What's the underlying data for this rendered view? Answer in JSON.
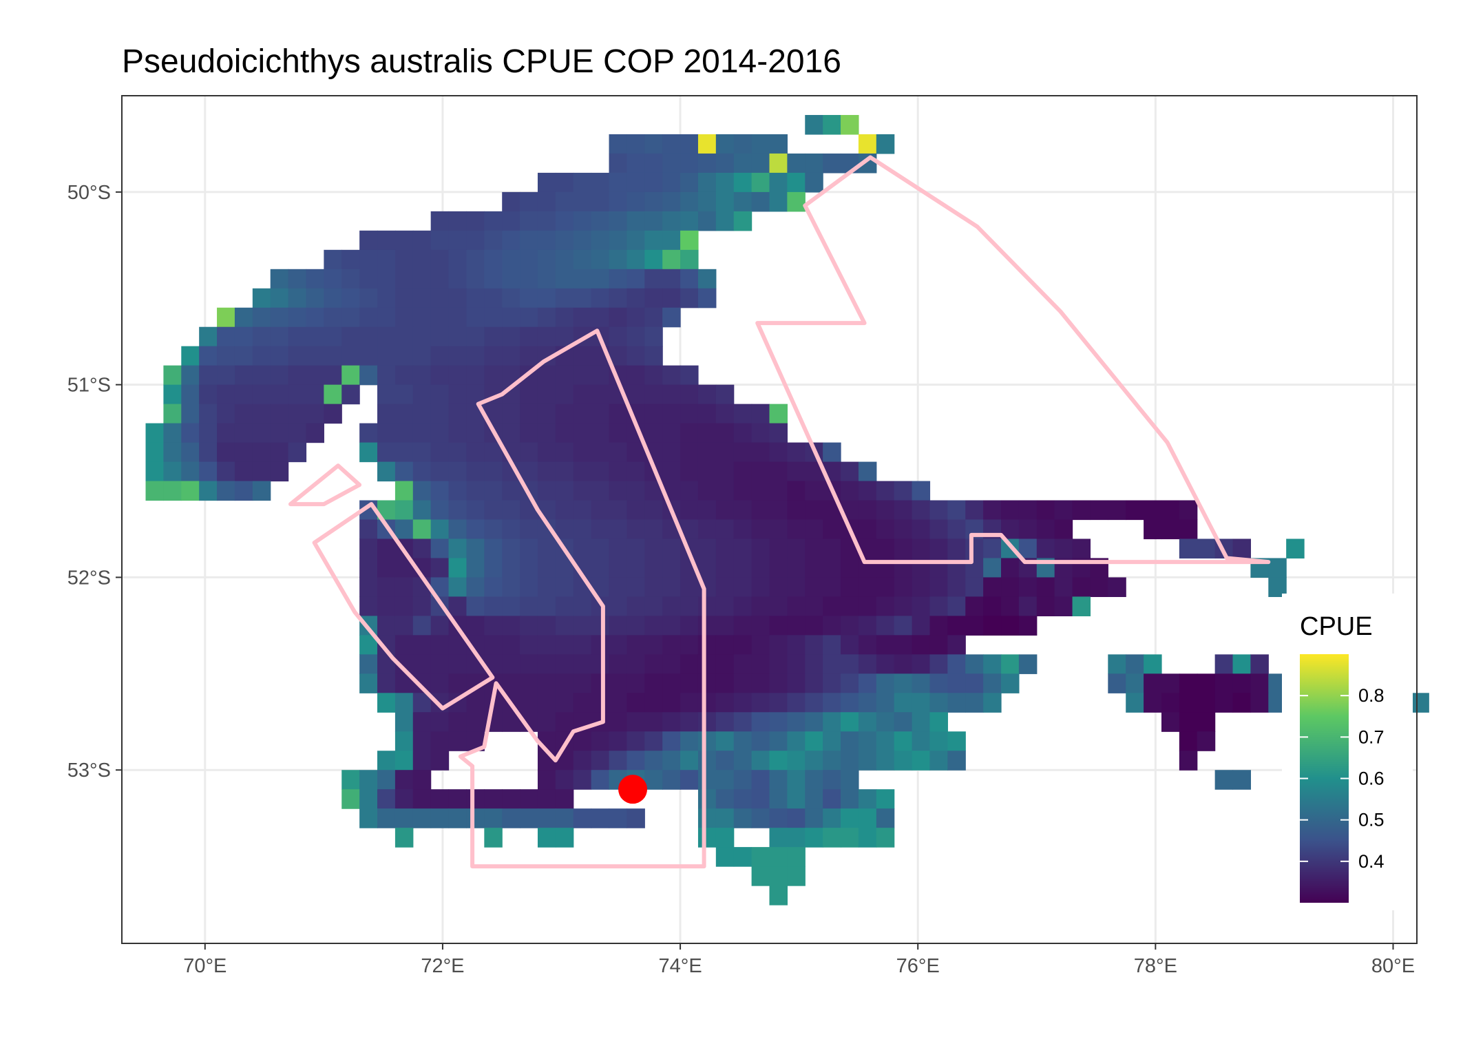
{
  "chart_data": {
    "type": "heatmap",
    "title": "Pseudoicichthys australis  CPUE COP 2014-2016",
    "xlabel": "",
    "ylabel": "",
    "x_ticks": [
      "70°E",
      "72°E",
      "74°E",
      "76°E",
      "78°E",
      "80°E"
    ],
    "x_tick_values": [
      70,
      72,
      74,
      76,
      78,
      80
    ],
    "y_ticks": [
      "50°S",
      "51°S",
      "52°S",
      "53°S"
    ],
    "y_tick_values": [
      -50,
      -51,
      -52,
      -53
    ],
    "xlim": [
      69.3,
      80.2
    ],
    "ylim": [
      -53.9,
      -49.5
    ],
    "grid": true,
    "legend": {
      "title": "CPUE",
      "position": "right",
      "breaks": [
        0.4,
        0.5,
        0.6,
        0.7,
        0.8
      ],
      "labels": [
        "0.4",
        "0.5",
        "0.6",
        "0.7",
        "0.8"
      ],
      "range": [
        0.3,
        0.9
      ],
      "colors": [
        "#440154",
        "#3b528b",
        "#21908c",
        "#5dc863",
        "#fde725"
      ]
    },
    "grid_resolution": [
      0.15,
      0.1
    ],
    "cells": {
      "lon_start": 69.8,
      "lat_start": -49.6,
      "lat_step": -0.1,
      "lon_step": 0.15,
      "rows": [
        [
          55,
          "0.55,0.62,0.78"
        ],
        [
          44,
          "0.46,0.46,0.47,0.46,0.46,0.88,0.5,0.49,0.5,0.5,0,0,0,0,0.88,0.55"
        ],
        [
          44,
          "0.44,0.45,0.45,0.46,0.46,0.47,0.48,0.5,0.5,0.84,0.5,0.5,0.48,0.48,0.5"
        ],
        [
          40,
          "0.43,0.43,0.44,0.44,0.45,0.45,0.45,0.46,0.48,0.52,0.55,0.6,0.65,0.55,0.6,0.5"
        ],
        [
          38,
          "0.42,0.43,0.43,0.44,0.44,0.44,0.45,0.46,0.47,0.48,0.5,0.52,0.55,0.52,0.5,0.55,0.72"
        ],
        [
          34,
          "0.42,0.42,0.42,0.43,0.43,0.44,0.44,0.45,0.46,0.47,0.48,0.5,0.5,0.52,0.53,0.5,0.55,0.62"
        ],
        [
          30,
          "0.42,0.42,0.42,0.42,0.43,0.43,0.43,0.44,0.45,0.46,0.46,0.47,0.48,0.49,0.5,0.52,0.55,0.55,0.75"
        ],
        [
          28,
          "0.44,0.43,0.43,0.43,0.42,0.42,0.42,0.43,0.44,0.45,0.46,0.46,0.47,0.48,0.49,0.5,0.52,0.55,0.6,0.7,0.65"
        ],
        [
          25,
          "0.5,0.48,0.46,0.45,0.44,0.43,0.43,0.42,0.42,0.42,0.43,0.44,0.45,0.46,0.46,0.47,0.48,0.48,0.48,0.46,0.45,0.42,0.42,0.45,0.52"
        ],
        [
          24,
          "0.55,0.53,0.5,0.48,0.46,0.45,0.44,0.43,0.42,0.42,0.42,0.42,0.43,0.43,0.44,0.45,0.45,0.44,0.44,0.43,0.42,0.41,0.4,0.4,0.42,0.45"
        ],
        [
          22,
          "0.78,0.5,0.48,0.47,0.46,0.45,0.44,0.44,0.43,0.43,0.42,0.42,0.42,0.42,0.43,0.43,0.43,0.43,0.42,0.41,0.4,0.4,0.39,0.4,0.41,0.45"
        ],
        [
          21,
          "0.55,0.45,0.45,0.44,0.44,0.43,0.43,0.43,0.42,0.42,0.42,0.42,0.42,0.42,0.42,0.42,0.41,0.41,0.4,0.4,0.4,0.39,0.39,0.4,0.41,0.42"
        ],
        [
          20,
          "0.6,0.45,0.44,0.44,0.43,0.43,0.42,0.42,0.42,0.42,0.42,0.42,0.42,0.42,0.41,0.41,0.41,0.4,0.4,0.39,0.39,0.38,0.38,0.38,0.39,0.4,0.41"
        ],
        [
          19,
          "0.68,0.5,0.42,0.42,0.41,0.41,0.41,0.4,0.4,0.4,0.72,0.48,0.42,0.41,0.41,0.4,0.4,0.4,0.39,0.39,0.38,0.38,0.38,0.38,0.38,0.37,0.37,0.38,0.39,0.4"
        ],
        [
          19,
          "0.6,0.48,0.41,0.4,0.4,0.4,0.4,0.4,0.4,0.72,0.4,0,0.42,0.42,0.41,0.41,0.4,0.4,0.39,0.39,0.38,0.38,0.38,0.37,0.37,0.37,0.37,0.37,0.37,0.37,0.38,0.39"
        ],
        [
          19,
          "0.68,0.48,0.42,0.4,0.39,0.39,0.39,0.39,0.39,0.38,0,0,0.41,0.41,0.41,0.41,0.4,0.4,0.39,0.39,0.38,0.38,0.37,0.37,0.37,0.36,0.36,0.36,0.36,0.36,0.36,0.37,0.38,0.38,0.72"
        ],
        [
          18,
          "0.6,0.52,0.45,0.42,0.39,0.39,0.39,0.39,0.39,0.38,0,0,0.42,0.41,0.41,0.41,0.41,0.4,0.4,0.39,0.39,0.38,0.38,0.37,0.37,0.37,0.36,0.36,0.36,0.36,0.35,0.35,0.35,0.36,0.37,0.38"
        ],
        [
          18,
          "0.6,0.52,0.48,0.42,0.38,0.38,0.38,0.38,0.4,0,0,0,0.58,0.42,0.42,0.42,0.41,0.41,0.4,0.4,0.39,0.39,0.38,0.38,0.37,0.37,0.37,0.36,0.36,0.36,0.35,0.35,0.35,0.35,0.35,0.36,0.37,0.38,0.46"
        ],
        [
          18,
          "0.6,0.55,0.5,0.45,0.4,0.38,0.38,0.38,0,0,0,0,0,0.55,0.46,0.43,0.42,0.42,0.41,0.41,0.4,0.4,0.39,0.39,0.38,0.38,0.37,0.37,0.36,0.36,0.35,0.35,0.35,0.34,0.34,0.34,0.35,0.35,0.36,0.38,0.48"
        ],
        [
          18,
          "0.7,0.7,0.72,0.55,0.48,0.46,0.5,0,0,0,0,0,0,0,0.72,0.48,0.45,0.43,0.42,0.42,0.41,0.41,0.4,0.4,0.39,0.39,0.38,0.38,0.37,0.36,0.36,0.35,0.35,0.34,0.34,0.34,0.33,0.34,0.34,0.35,0.36,0.38,0.4,0.45"
        ],
        [
          23,
          "0,0,0,0,0,0,0,0.45,0.68,0.66,0.52,0.46,0.44,0.43,0.42,0.42,0.41,0.41,0.4,0.4,0.39,0.39,0.38,0.38,0.37,0.36,0.36,0.35,0.35,0.34,0.34,0.33,0.33,0.33,0.34,0.34,0.35,0.36,0.38,0.4,0.42,0.38,0.34,0.33,0.33,0.32,0.33,0.32,0.32,0.32,0.31,0.31,0.31,0.32"
        ],
        [
          23,
          "0,0,0,0,0,0,0,0.4,0.45,0.5,0.7,0.55,0.48,0.45,0.44,0.43,0.42,0.42,0.41,0.41,0.4,0.4,0.39,0.39,0.38,0.38,0.37,0.37,0.36,0.35,0.35,0.34,0.34,0.33,0.33,0.33,0.34,0.35,0.36,0.38,0.4,0.42,0.38,0.35,0.34,0.33,0.32,0,0,0,0,0.31,0.31,0.31"
        ],
        [
          24,
          "0,0,0,0,0,0,0.38,0.36,0.36,0.38,0.46,0.55,0.5,0.46,0.44,0.43,0.42,0.42,0.41,0.41,0.4,0.4,0.39,0.39,0.38,0.38,0.37,0.37,0.36,0.35,0.35,0.34,0.34,0.33,0.33,0.33,0.34,0.35,0.36,0.38,0.4,0.42,0.55,0.45,0.36,0.35,0.34,0,0,0,0,0,0.42,0.42,0.4,0.38,0,0,0.6"
        ],
        [
          24,
          "0,0,0,0,0,0,0.38,0.36,0.36,0.36,0.38,0.6,0.5,0.46,0.44,0.43,0.42,0.42,0.41,0.41,0.4,0.4,0.39,0.39,0.38,0.38,0.37,0.37,0.36,0.35,0.35,0.34,0.34,0.33,0.33,0.33,0.34,0.35,0.36,0.38,0.4,0.5,0.33,0.35,0.52,0.34,0.33,0.32,0,0,0,0,0,0,0,0,0.55,0.55"
        ],
        [
          25,
          "0,0,0,0,0,0.38,0.37,0.37,0.38,0.45,0.55,0.48,0.45,0.44,0.43,0.42,0.42,0.41,0.41,0.4,0.4,0.39,0.39,0.38,0.38,0.37,0.37,0.36,0.35,0.35,0.34,0.34,0.33,0.33,0.33,0.34,0.35,0.36,0.38,0.4,0.32,0.32,0.33,0.32,0.34,0.32,0.32,0.33,0,0,0,0,0,0,0,0,0.55"
        ],
        [
          26,
          "0,0,0,0,0.38,0.37,0.37,0.38,0.42,0.38,0.44,0.43,0.43,0.42,0.42,0.41,0.41,0.4,0.4,0.39,0.39,0.38,0.38,0.37,0.37,0.36,0.35,0.35,0.34,0.34,0.33,0.33,0.33,0.34,0.35,0.36,0.38,0.4,0.32,0.31,0.32,0.35,0.32,0.33,0.62,0,0,0,0,0,0,0,0,0,0,0,0"
        ],
        [
          27,
          "0,0,0,0.55,0.38,0.38,0.42,0.38,0.36,0.36,0.37,0.37,0.38,0.38,0.39,0.39,0.39,0.38,0.38,0.37,0.37,0.36,0.35,0.35,0.34,0.34,0.33,0.33,0.33,0.34,0.35,0.36,0.38,0.4,0.36,0.32,0.31,0.31,0.3,0.3,0.31,0,0,0,0,0,0,0,0,0,0,0,0,0,0,0,0.48"
        ],
        [
          27,
          "0,0,0,0.6,0.38,0.36,0.36,0.36,0.36,0.36,0.36,0.36,0.37,0.37,0.37,0.37,0.36,0.36,0.35,0.35,0.34,0.34,0.33,0.33,0.33,0.34,0.35,0.36,0.38,0.4,0.36,0.34,0.33,0.33,0.32,0.32,0.34,0,0,0,0,0,0,0,0,0,0,0,0,0,0,0,0,0,0,0,0.45"
        ],
        [
          28,
          "0,0,0.5,0.38,0.36,0.36,0.36,0.36,0.36,0.36,0.36,0.36,0.36,0.36,0.36,0.36,0.35,0.35,0.34,0.34,0.33,0.33,0.33,0.34,0.34,0.35,0.36,0.38,0.4,0.4,0.38,0.36,0.35,0.36,0.4,0.45,0.5,0.55,0.62,0.5,0,0,0,0,0.55,0.5,0.6,0,0,0,0.4,0.6,0.38,0,0.5"
        ],
        [
          30,
          "0.55,0.38,0.36,0.36,0.36,0.35,0.35,0.35,0.35,0.35,0.35,0.35,0.35,0.34,0.34,0.34,0.33,0.33,0.33,0.33,0.33,0.34,0.34,0.35,0.36,0.38,0.4,0.42,0.45,0.5,0.52,0.5,0.46,0.45,0.45,0.5,0.55,0,0,0,0,0,0.48,0.52,0.32,0.32,0.3,0.3,0.31,0.31,0.32,0.5,0.55,0.52,0.6"
        ],
        [
          31,
          "0.6,0.55,0.4,0.37,0.36,0.35,0.35,0.35,0.35,0.35,0.35,0.34,0.34,0.34,0.33,0.33,0.33,0.34,0.34,0.35,0.36,0.37,0.38,0.4,0.42,0.44,0.46,0.48,0.5,0.55,0.55,0.52,0.5,0.5,0.55,0,0,0,0,0,0,0,0.55,0.32,0.31,0.3,0.3,0.31,0.3,0.32,0.5,0.55,0.52,0,0,0,0,0,0.55"
        ],
        [
          32,
          "0.55,0.36,0.36,0.35,0.35,0.35,0.35,0.35,0.35,0.34,0.34,0.34,0.34,0.35,0.35,0.36,0.37,0.38,0.4,0.42,0.45,0.46,0.48,0.5,0.55,0.6,0.55,0.52,0.5,0.55,0.6,0,0,0,0,0,0,0,0,0,0,0,0,0.32,0.3,0.3"
        ],
        [
          32,
          "0.58,0.36,0.35,0.35,0.35,0,0,0,0.34,0.34,0.34,0.35,0.36,0.38,0.4,0.45,0.5,0.52,0.55,0.5,0.48,0.5,0.55,0.6,0.55,0.5,0.52,0.55,0.6,0.55,0.58,0.6,0,0,0,0,0,0,0,0,0,0,0,0,0.3,0.32"
        ],
        [
          31,
          "0.58,0.6,0.36,0.35,0,0,0,0,0,0.34,0.34,0.36,0.38,0.42,0.45,0.48,0.5,0.55,0.5,0.48,0.5,0.55,0.6,0.58,0.55,0.52,0.5,0.52,0.55,0.58,0.6,0.55,0.5,0,0,0,0,0,0,0,0,0,0,0,0,0.32"
        ],
        [
          29,
          "0.62,0.55,0.5,0.35,0.34,0,0,0,0,0,0,0.34,0.36,0.38,0.45,0.5,0.52,0.5,0.48,0.45,0.5,0.5,0.48,0.45,0.5,0.55,0.5,0.48,0.5,0,0,0,0,0,0,0,0,0,0,0,0,0,0,0,0,0,0,0,0,0.5,0.5"
        ],
        [
          29,
          "0.68,0.55,0.42,0.36,0.34,0.34,0.34,0.34,0.34,0.34,0.34,0.34,0.34,0,0,0,0,0,0,0,0.52,0.48,0.46,0.45,0.5,0.55,0.5,0.45,0.5,0.55,0.6"
        ],
        [
          29,
          "0,0.55,0.5,0.5,0.5,0.5,0.5,0.5,0.5,0.48,0.48,0.48,0.48,0.45,0.45,0.45,0.44,0,0,0,0.55,0.55,0.5,0.48,0.46,0.45,0.5,0.55,0.6,0.6,0.5"
        ],
        [
          29,
          "0,0,0,0.62,0,0,0,0,0.62,0,0,0.6,0.6,0,0,0,0,0,0,0,0.6,0.6,0,0,0.58,0.58,0.6,0.62,0.62,0.6,0.62"
        ],
        [
          50,
          "0.6,0.6,0.62,0.62,0.62"
        ],
        [
          52,
          "0.62,0.62,0.62"
        ],
        [
          53,
          "0.62"
        ]
      ]
    },
    "management_areas": [
      {
        "name": "area-1",
        "points": [
          [
            70.72,
            -51.62
          ],
          [
            71.12,
            -51.42
          ],
          [
            71.3,
            -51.52
          ],
          [
            71.0,
            -51.62
          ]
        ]
      },
      {
        "name": "area-2",
        "points": [
          [
            70.92,
            -51.82
          ],
          [
            71.4,
            -51.62
          ],
          [
            72.42,
            -52.52
          ],
          [
            72.0,
            -52.68
          ],
          [
            71.58,
            -52.42
          ],
          [
            71.26,
            -52.18
          ]
        ]
      },
      {
        "name": "area-3",
        "points": [
          [
            72.3,
            -51.1
          ],
          [
            72.5,
            -51.05
          ],
          [
            72.85,
            -50.88
          ],
          [
            73.3,
            -50.72
          ],
          [
            74.2,
            -52.06
          ],
          [
            74.2,
            -53.5
          ],
          [
            72.25,
            -53.5
          ],
          [
            72.25,
            -52.98
          ],
          [
            72.15,
            -52.93
          ],
          [
            72.35,
            -52.88
          ],
          [
            72.45,
            -52.55
          ],
          [
            72.8,
            -52.85
          ],
          [
            72.95,
            -52.95
          ],
          [
            73.1,
            -52.8
          ],
          [
            73.35,
            -52.75
          ],
          [
            73.35,
            -52.15
          ],
          [
            72.8,
            -51.65
          ]
        ]
      },
      {
        "name": "area-4",
        "points": [
          [
            74.65,
            -50.68
          ],
          [
            75.55,
            -50.68
          ],
          [
            75.05,
            -50.07
          ],
          [
            75.6,
            -49.82
          ],
          [
            76.5,
            -50.18
          ],
          [
            77.2,
            -50.62
          ],
          [
            78.1,
            -51.3
          ],
          [
            78.6,
            -51.9
          ],
          [
            78.95,
            -51.92
          ],
          [
            76.9,
            -51.92
          ],
          [
            76.7,
            -51.78
          ],
          [
            76.45,
            -51.78
          ],
          [
            76.45,
            -51.92
          ],
          [
            75.55,
            -51.92
          ]
        ]
      }
    ],
    "marker": {
      "lon": 73.6,
      "lat": -53.1,
      "color": "#ff0000"
    },
    "colors": {
      "panel_border": "#333333",
      "gridline": "#ebebeb",
      "area_outline": "#ffc0cb",
      "marker": "#ff0000",
      "tick": "#333333"
    }
  }
}
